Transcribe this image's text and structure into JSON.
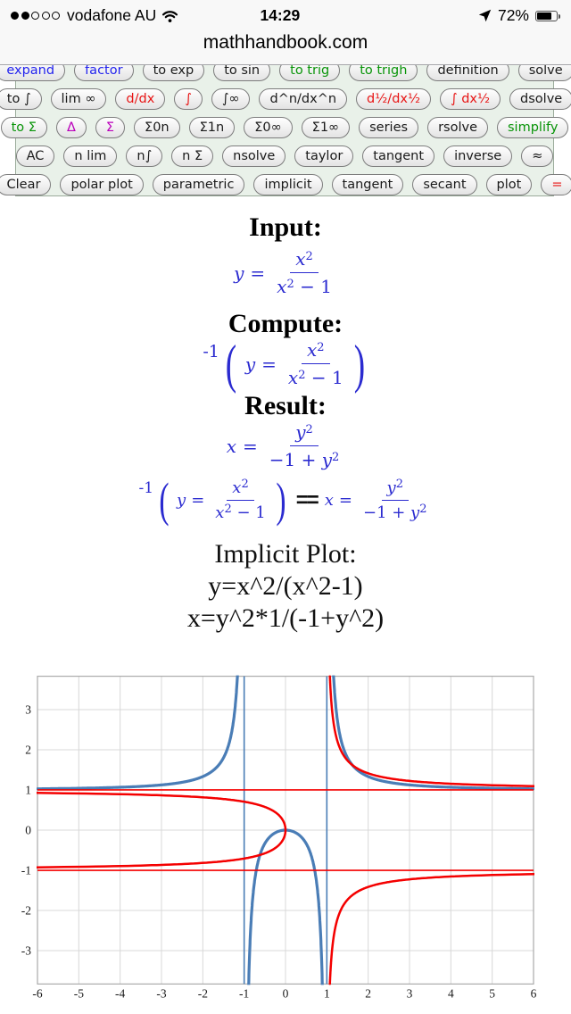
{
  "status_bar": {
    "carrier": "vodafone AU",
    "time": "14:29",
    "battery_percent": "72%",
    "signal_filled": 2,
    "signal_total": 5
  },
  "header": {
    "title": "mathhandbook.com"
  },
  "toolbar": {
    "rows": [
      {
        "buttons": [
          {
            "label": "expand",
            "color": "blue"
          },
          {
            "label": "factor",
            "color": "blue"
          },
          {
            "label": "to exp",
            "color": "black"
          },
          {
            "label": "to sin",
            "color": "black"
          },
          {
            "label": "to trig",
            "color": "green"
          },
          {
            "label": "to trigh",
            "color": "green"
          },
          {
            "label": "definition",
            "color": "black"
          },
          {
            "label": "solve",
            "color": "black"
          }
        ]
      },
      {
        "buttons": [
          {
            "label": "to ∫",
            "color": "black"
          },
          {
            "label": "lim ∞",
            "color": "black"
          },
          {
            "label": "d/dx",
            "color": "red"
          },
          {
            "label": "∫",
            "color": "red"
          },
          {
            "label": "∫∞",
            "color": "black"
          },
          {
            "label": "d^n/dx^n",
            "color": "black"
          },
          {
            "label": "d½/dx½",
            "color": "red"
          },
          {
            "label": "∫ dx½",
            "color": "red"
          },
          {
            "label": "dsolve",
            "color": "black"
          }
        ]
      },
      {
        "buttons": [
          {
            "label": "to Σ",
            "color": "green"
          },
          {
            "label": "Δ",
            "color": "magenta"
          },
          {
            "label": "Σ",
            "color": "magenta"
          },
          {
            "label": "Σ0n",
            "color": "black"
          },
          {
            "label": "Σ1n",
            "color": "black"
          },
          {
            "label": "Σ0∞",
            "color": "black"
          },
          {
            "label": "Σ1∞",
            "color": "black"
          },
          {
            "label": "series",
            "color": "black"
          },
          {
            "label": "rsolve",
            "color": "black"
          },
          {
            "label": "simplify",
            "color": "green"
          }
        ]
      },
      {
        "buttons": [
          {
            "label": "AC",
            "color": "black"
          },
          {
            "label": "n lim",
            "color": "black"
          },
          {
            "label": "n∫",
            "color": "black"
          },
          {
            "label": "n Σ",
            "color": "black"
          },
          {
            "label": "nsolve",
            "color": "black"
          },
          {
            "label": "taylor",
            "color": "black"
          },
          {
            "label": "tangent",
            "color": "black"
          },
          {
            "label": "inverse",
            "color": "black"
          },
          {
            "label": "≈",
            "color": "black"
          }
        ]
      },
      {
        "buttons": [
          {
            "label": "Clear",
            "color": "black"
          },
          {
            "label": "polar plot",
            "color": "black"
          },
          {
            "label": "parametric",
            "color": "black"
          },
          {
            "label": "implicit",
            "color": "black"
          },
          {
            "label": "tangent",
            "color": "black"
          },
          {
            "label": "secant",
            "color": "black"
          },
          {
            "label": "plot",
            "color": "black"
          },
          {
            "label": "=",
            "color": "red"
          }
        ]
      }
    ]
  },
  "math": {
    "input_heading": "Input:",
    "compute_heading": "Compute:",
    "result_heading": "Result:",
    "var_x": "x",
    "var_y": "y",
    "eq": "=",
    "sup2": "2",
    "den_tail": " − 1",
    "result_den_pre": "−1 + ",
    "inverse_prefix": "-1",
    "paren_open": "(",
    "paren_close": ")",
    "equals_equals": "=="
  },
  "implicit": {
    "title": "Implicit Plot:",
    "eq1": "y=x^2/(x^2-1)",
    "eq2": "x=y^2*1/(-1+y^2)"
  },
  "chart_data": {
    "type": "line",
    "title": "",
    "xlabel": "",
    "ylabel": "",
    "xlim": [
      -6,
      6
    ],
    "ylim": [
      -3.83,
      3.83
    ],
    "xticks": [
      -6,
      -5,
      -4,
      -3,
      -2,
      -1,
      0,
      1,
      2,
      3,
      4,
      5,
      6
    ],
    "yticks": [
      -3,
      -2,
      -1,
      0,
      1,
      2,
      3
    ],
    "grid": true,
    "legend": "none",
    "series": [
      {
        "name": "y=x^2/(x^2-1)",
        "color": "#4a7db6",
        "width": 3.2,
        "independent": "x",
        "expr": "t*t/(t*t-1)",
        "domain": [
          -6,
          6
        ],
        "step": 0.004
      },
      {
        "name": "x=y^2*1/(-1+y^2)",
        "color": "#f40000",
        "width": 2.5,
        "independent": "y",
        "expr": "t*t/(-1+t*t)",
        "domain": [
          -3.83,
          3.83
        ],
        "step": 0.004
      }
    ],
    "asymptotes": [
      {
        "orient": "vertical",
        "value": -1,
        "color": "#4a7db6",
        "width": 1.6
      },
      {
        "orient": "vertical",
        "value": 1,
        "color": "#4a7db6",
        "width": 1.6
      },
      {
        "orient": "horizontal",
        "value": 1,
        "color": "#f40000",
        "width": 1.6
      },
      {
        "orient": "horizontal",
        "value": -1,
        "color": "#f40000",
        "width": 1.6
      }
    ]
  }
}
